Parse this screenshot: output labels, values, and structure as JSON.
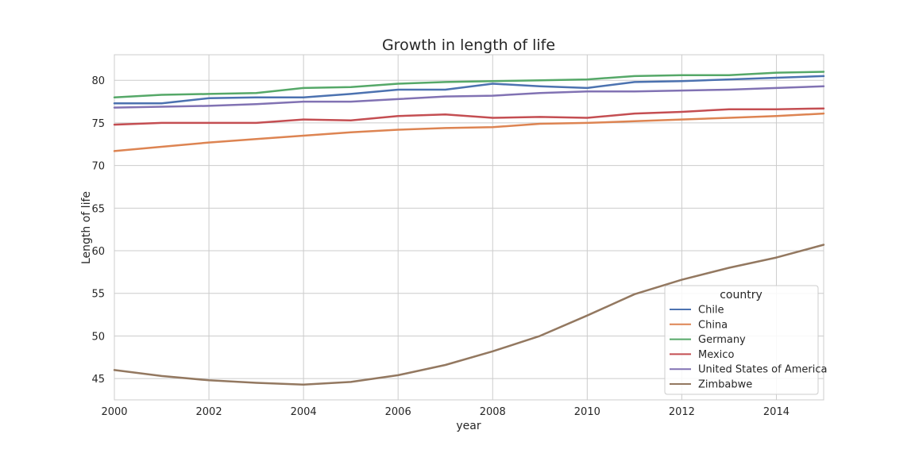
{
  "chart_data": {
    "type": "line",
    "title": "Growth in length of life",
    "xlabel": "year",
    "ylabel": "Length of life",
    "xlim": [
      2000,
      2015
    ],
    "ylim": [
      42.5,
      83.0
    ],
    "x_ticks": [
      2000,
      2002,
      2004,
      2006,
      2008,
      2010,
      2012,
      2014
    ],
    "y_ticks": [
      45,
      50,
      55,
      60,
      65,
      70,
      75,
      80
    ],
    "grid": true,
    "legend": {
      "title": "country",
      "placement": "lower-right"
    },
    "x": [
      2000,
      2001,
      2002,
      2003,
      2004,
      2005,
      2006,
      2007,
      2008,
      2009,
      2010,
      2011,
      2012,
      2013,
      2014,
      2015
    ],
    "series": [
      {
        "name": "Chile",
        "color": "#4c72b0",
        "values": [
          77.3,
          77.3,
          77.9,
          78.0,
          78.0,
          78.4,
          78.9,
          78.9,
          79.6,
          79.3,
          79.1,
          79.8,
          79.9,
          80.1,
          80.3,
          80.5
        ]
      },
      {
        "name": "China",
        "color": "#dd8452",
        "values": [
          71.7,
          72.2,
          72.7,
          73.1,
          73.5,
          73.9,
          74.2,
          74.4,
          74.5,
          74.9,
          75.0,
          75.2,
          75.4,
          75.6,
          75.8,
          76.1
        ]
      },
      {
        "name": "Germany",
        "color": "#55a868",
        "values": [
          78.0,
          78.3,
          78.4,
          78.5,
          79.1,
          79.2,
          79.6,
          79.8,
          79.9,
          80.0,
          80.1,
          80.5,
          80.6,
          80.6,
          80.9,
          81.0
        ]
      },
      {
        "name": "Mexico",
        "color": "#c44e52",
        "values": [
          74.8,
          75.0,
          75.0,
          75.0,
          75.4,
          75.3,
          75.8,
          76.0,
          75.6,
          75.7,
          75.6,
          76.1,
          76.3,
          76.6,
          76.6,
          76.7
        ]
      },
      {
        "name": "United States of America",
        "color": "#8172b3",
        "values": [
          76.8,
          76.9,
          77.0,
          77.2,
          77.5,
          77.5,
          77.8,
          78.1,
          78.2,
          78.5,
          78.7,
          78.7,
          78.8,
          78.9,
          79.1,
          79.3
        ]
      },
      {
        "name": "Zimbabwe",
        "color": "#937860",
        "values": [
          46.0,
          45.3,
          44.8,
          44.5,
          44.3,
          44.6,
          45.4,
          46.6,
          48.2,
          50.0,
          52.4,
          54.9,
          56.6,
          58.0,
          59.2,
          60.7
        ]
      }
    ]
  }
}
